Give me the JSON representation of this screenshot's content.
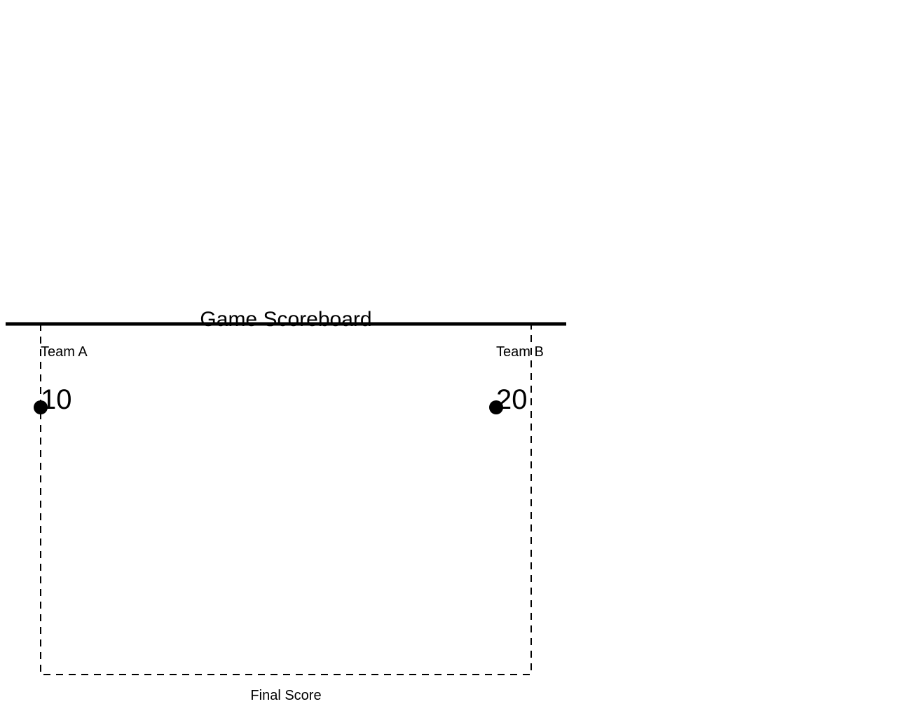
{
  "diagram": {
    "title": "Game Scoreboard",
    "caption": "Final Score",
    "teams": [
      {
        "name": "Team A",
        "score": "10"
      },
      {
        "name": "Team B",
        "score": "20"
      }
    ]
  }
}
